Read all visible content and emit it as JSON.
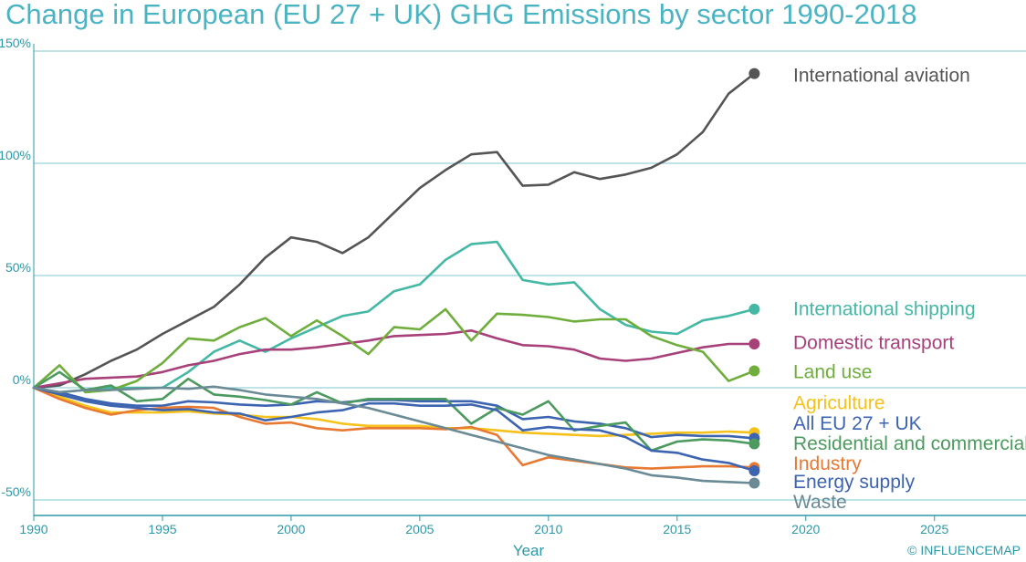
{
  "chart_data": {
    "type": "line",
    "title": "Change in European (EU 27 + UK) GHG Emissions by sector 1990-2018",
    "xlabel": "Year",
    "ylabel": "",
    "xlim": [
      1990,
      2027
    ],
    "ylim": [
      -55,
      150
    ],
    "x_ticks": [
      1990,
      1995,
      2000,
      2005,
      2010,
      2015,
      2020,
      2025
    ],
    "x_tick_labels": [
      "1990",
      "1995",
      "2000",
      "2005",
      "2010",
      "2015",
      "2020",
      "2025"
    ],
    "y_ticks": [
      -50,
      0,
      50,
      100,
      150
    ],
    "y_tick_labels": [
      "-50%",
      "0%",
      "50%",
      "100%",
      "150%"
    ],
    "grid": "horizontal",
    "legend": "end-of-line labels",
    "credit": "© INFLUENCEMAP",
    "x": [
      1990,
      1991,
      1992,
      1993,
      1994,
      1995,
      1996,
      1997,
      1998,
      1999,
      2000,
      2001,
      2002,
      2003,
      2004,
      2005,
      2006,
      2007,
      2008,
      2009,
      2010,
      2011,
      2012,
      2013,
      2014,
      2015,
      2016,
      2017,
      2018
    ],
    "series": [
      {
        "name": "International aviation",
        "color": "#555555",
        "label_y": 139,
        "values": [
          0,
          1,
          6,
          12,
          17,
          24,
          30,
          36,
          46,
          58,
          67,
          65,
          60,
          67,
          78,
          89,
          97,
          104,
          105,
          90,
          90.5,
          96,
          93,
          95,
          98,
          104,
          114,
          131,
          140
        ]
      },
      {
        "name": "International shipping",
        "color": "#44b8a4",
        "label_y": 35,
        "values": [
          0,
          -2,
          -1,
          0,
          0,
          0,
          7,
          16,
          21,
          16,
          22,
          27,
          32,
          34,
          43,
          46,
          57,
          64,
          65,
          48,
          46,
          47,
          35,
          28,
          25,
          24,
          30,
          32,
          35
        ]
      },
      {
        "name": "Domestic transport",
        "color": "#a8407a",
        "label_y": 20,
        "values": [
          0,
          2,
          4,
          4.5,
          5,
          7,
          10,
          12,
          15,
          17,
          17,
          18,
          19.5,
          21,
          23,
          23.5,
          24,
          25.5,
          22,
          19,
          18.5,
          17,
          13,
          12,
          13,
          15.5,
          18,
          19.5,
          19.5
        ]
      },
      {
        "name": "Land use",
        "color": "#6fae3c",
        "label_y": 7,
        "values": [
          0,
          10,
          -2,
          -1,
          3,
          11,
          22,
          21,
          27,
          31,
          23,
          30,
          23,
          15,
          27,
          26,
          35,
          21,
          33,
          32.5,
          31.5,
          29.5,
          30.5,
          30.5,
          23,
          19,
          16,
          3,
          7.5
        ]
      },
      {
        "name": "Agriculture",
        "color": "#f5c11a",
        "label_y": -7,
        "values": [
          0,
          -4,
          -8,
          -11,
          -11,
          -11,
          -10.5,
          -11.5,
          -12,
          -13,
          -13,
          -14,
          -16,
          -17,
          -17,
          -17,
          -18,
          -18,
          -19,
          -20,
          -20.5,
          -21,
          -21.5,
          -21,
          -20.5,
          -20,
          -20,
          -19.5,
          -20
        ]
      },
      {
        "name": "All EU 27 + UK",
        "color": "#3d64b0",
        "label_y": -16,
        "values": [
          0,
          -2,
          -5,
          -7,
          -8,
          -8,
          -6,
          -6.5,
          -7.5,
          -8,
          -7.5,
          -6,
          -6.5,
          -5.5,
          -5.5,
          -6,
          -6,
          -6,
          -8,
          -14,
          -13,
          -15,
          -16,
          -18,
          -22,
          -21,
          -21.5,
          -21.5,
          -22.5
        ]
      },
      {
        "name": "Residential and commercial",
        "color": "#4c9a5e",
        "label_y": -25,
        "values": [
          0,
          7,
          -1,
          1,
          -6,
          -5,
          4,
          -3,
          -4,
          -5.5,
          -7.5,
          -2,
          -7,
          -5,
          -5,
          -5,
          -5,
          -16,
          -9,
          -12,
          -6,
          -19,
          -17,
          -15.5,
          -28,
          -24,
          -23,
          -23.5,
          -25
        ]
      },
      {
        "name": "Industry",
        "color": "#e87932",
        "label_y": -34,
        "values": [
          0,
          -5,
          -9,
          -12,
          -10,
          -9,
          -8.5,
          -9,
          -13,
          -16,
          -15.5,
          -18,
          -19,
          -18,
          -18,
          -18,
          -18.5,
          -17.5,
          -21,
          -34.5,
          -31,
          -32.5,
          -34,
          -35.5,
          -36,
          -35.5,
          -35,
          -35,
          -35.5
        ]
      },
      {
        "name": "Energy supply",
        "color": "#3d64b0",
        "label_y": -42,
        "values": [
          0,
          -3,
          -6,
          -8,
          -9,
          -10,
          -9.5,
          -11,
          -11.5,
          -14.5,
          -13,
          -11,
          -10,
          -7,
          -7,
          -8,
          -8,
          -7.5,
          -10,
          -19,
          -17.5,
          -18.5,
          -19,
          -22,
          -28,
          -29,
          -32,
          -33.5,
          -37
        ]
      },
      {
        "name": "Waste",
        "color": "#6a8a96",
        "label_y": -51,
        "values": [
          0,
          -2,
          -1,
          -1,
          -0.5,
          0,
          -0.5,
          0.5,
          -1,
          -3,
          -4,
          -5,
          -7,
          -9,
          -12,
          -15,
          -18,
          -21,
          -24,
          -27,
          -30,
          -32,
          -34,
          -36,
          -39,
          -40,
          -41.5,
          -42,
          -42.5
        ]
      }
    ]
  }
}
